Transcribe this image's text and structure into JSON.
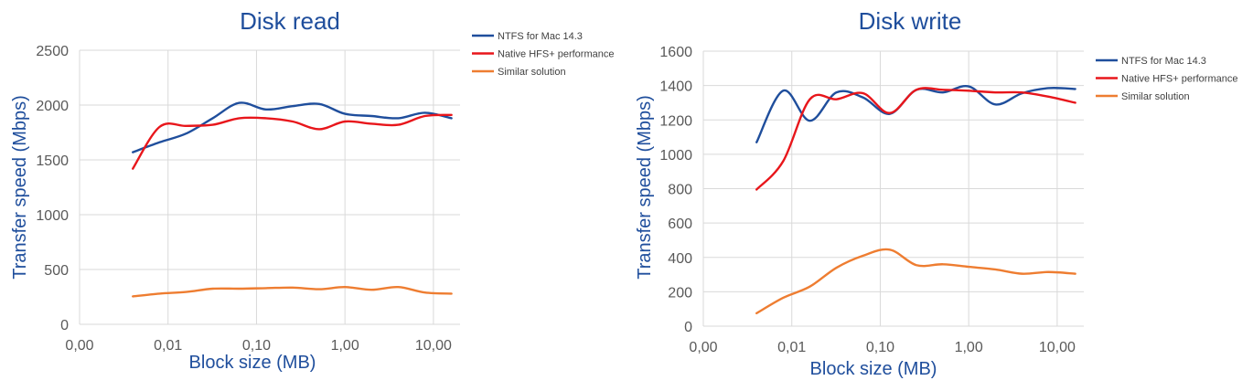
{
  "colors": {
    "ntfs": "#1f4e9c",
    "native": "#e8161b",
    "similar": "#ee7d31",
    "title": "#1f4e9c",
    "axis_text": "#595959",
    "grid": "#d9d9d9"
  },
  "chart_data": [
    {
      "type": "line",
      "title": "Disk read",
      "xlabel": "Block size (MB)",
      "ylabel": "Transfer speed (Mbps)",
      "x_scale": "log",
      "xlim": [
        0.001,
        20
      ],
      "ylim": [
        0,
        2500
      ],
      "grid": true,
      "legend_position": "right",
      "x_tick_values": [
        0.001,
        0.01,
        0.1,
        1,
        10
      ],
      "x_tick_labels": [
        "0,00",
        "0,01",
        "0,10",
        "1,00",
        "10,00"
      ],
      "y_tick_values": [
        0,
        500,
        1000,
        1500,
        2000,
        2500
      ],
      "y_tick_labels": [
        "0",
        "500",
        "1000",
        "1500",
        "2000",
        "2500"
      ],
      "x": [
        0.004,
        0.008,
        0.016,
        0.032,
        0.064,
        0.128,
        0.256,
        0.512,
        1,
        2,
        4,
        8,
        16
      ],
      "series": [
        {
          "name": "NTFS for Mac 14.3",
          "color_key": "ntfs",
          "values": [
            1570,
            1660,
            1740,
            1880,
            2020,
            1960,
            1990,
            2010,
            1920,
            1900,
            1880,
            1930,
            1880
          ]
        },
        {
          "name": "Native HFS+ performance",
          "color_key": "native",
          "values": [
            1420,
            1800,
            1810,
            1820,
            1880,
            1880,
            1850,
            1780,
            1850,
            1830,
            1820,
            1900,
            1910
          ]
        },
        {
          "name": "Similar solution",
          "color_key": "similar",
          "values": [
            255,
            280,
            295,
            325,
            325,
            330,
            335,
            320,
            340,
            315,
            340,
            290,
            280
          ]
        }
      ]
    },
    {
      "type": "line",
      "title": "Disk write",
      "xlabel": "Block size (MB)",
      "ylabel": "Transfer speed (Mbps)",
      "x_scale": "log",
      "xlim": [
        0.001,
        20
      ],
      "ylim": [
        0,
        1600
      ],
      "grid": true,
      "legend_position": "right",
      "x_tick_values": [
        0.001,
        0.01,
        0.1,
        1,
        10
      ],
      "x_tick_labels": [
        "0,00",
        "0,01",
        "0,10",
        "1,00",
        "10,00"
      ],
      "y_tick_values": [
        0,
        200,
        400,
        600,
        800,
        1000,
        1200,
        1400,
        1600
      ],
      "y_tick_labels": [
        "0",
        "200",
        "400",
        "600",
        "800",
        "1000",
        "1200",
        "1400",
        "1600"
      ],
      "x": [
        0.004,
        0.008,
        0.016,
        0.032,
        0.064,
        0.128,
        0.256,
        0.512,
        1,
        2,
        4,
        8,
        16
      ],
      "series": [
        {
          "name": "NTFS for Mac 14.3",
          "color_key": "ntfs",
          "values": [
            1070,
            1370,
            1195,
            1360,
            1330,
            1235,
            1375,
            1360,
            1395,
            1290,
            1355,
            1385,
            1380
          ]
        },
        {
          "name": "Native HFS+ performance",
          "color_key": "native",
          "values": [
            795,
            960,
            1320,
            1320,
            1355,
            1240,
            1375,
            1375,
            1370,
            1360,
            1360,
            1335,
            1300
          ]
        },
        {
          "name": "Similar solution",
          "color_key": "similar",
          "values": [
            75,
            165,
            230,
            340,
            410,
            445,
            355,
            360,
            345,
            330,
            305,
            315,
            305
          ]
        }
      ]
    }
  ]
}
